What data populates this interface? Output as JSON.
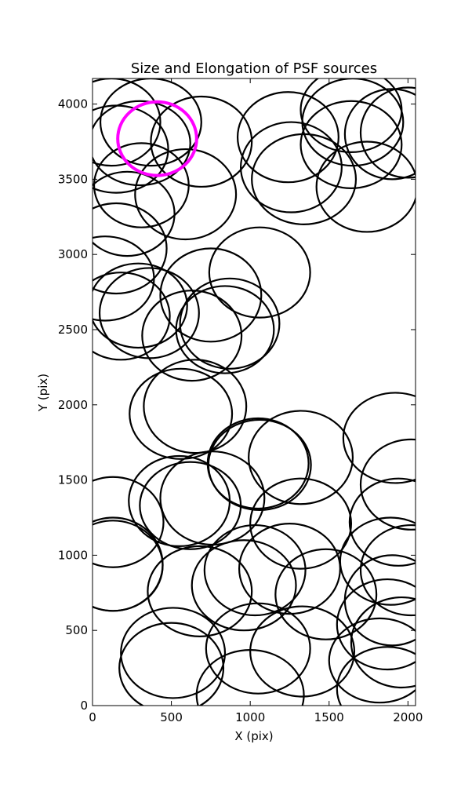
{
  "chart_data": {
    "type": "ellipse",
    "title": "Size and Elongation of PSF sources",
    "x_label": "X (pix)",
    "y_label": "Y (pix)",
    "xlim": [
      0,
      2048
    ],
    "ylim": [
      0,
      4170
    ],
    "xticks": [
      0,
      500,
      1000,
      1500,
      2000
    ],
    "yticks": [
      0,
      500,
      1000,
      1500,
      2000,
      2500,
      3000,
      3500,
      4000
    ],
    "series": [
      {
        "color": "#000000",
        "x": [
          120,
          370,
          150,
          300,
          690,
          590,
          310,
          220,
          150,
          80,
          290,
          180,
          360,
          750,
          1060,
          630,
          870,
          840,
          560,
          650,
          1240,
          1260,
          1340,
          1640,
          1650,
          1640,
          1740,
          1900,
          2000,
          1320,
          1050,
          1060,
          1920,
          2020,
          550,
          620,
          760,
          1320,
          130,
          130,
          130,
          1480,
          1250,
          1030,
          960,
          680,
          1050,
          1330,
          1000,
          510,
          500,
          1820,
          1870,
          1960,
          1900,
          1890,
          2020,
          1940,
          1870
        ],
        "y": [
          3880,
          3880,
          3700,
          3740,
          3750,
          3400,
          3460,
          3270,
          3040,
          2840,
          2660,
          2590,
          2610,
          2730,
          2880,
          2460,
          2540,
          2500,
          1940,
          1990,
          3780,
          3580,
          3500,
          3960,
          3880,
          3730,
          3450,
          3800,
          3810,
          1650,
          1610,
          1600,
          1780,
          1470,
          1360,
          1330,
          1380,
          1210,
          1220,
          930,
          940,
          740,
          910,
          900,
          800,
          760,
          380,
          360,
          70,
          350,
          250,
          300,
          540,
          420,
          700,
          960,
          900,
          1220,
          110
        ],
        "width": [
          620,
          640,
          660,
          640,
          640,
          640,
          600,
          600,
          640,
          620,
          620,
          620,
          630,
          640,
          640,
          630,
          630,
          620,
          650,
          650,
          640,
          640,
          660,
          640,
          640,
          640,
          640,
          600,
          600,
          660,
          640,
          650,
          660,
          640,
          640,
          640,
          660,
          640,
          640,
          630,
          630,
          640,
          640,
          640,
          660,
          660,
          660,
          660,
          680,
          660,
          660,
          640,
          640,
          640,
          600,
          640,
          640,
          620,
          640
        ],
        "height": [
          580,
          580,
          580,
          560,
          600,
          600,
          560,
          560,
          600,
          560,
          560,
          580,
          600,
          620,
          600,
          600,
          600,
          580,
          600,
          620,
          600,
          600,
          600,
          560,
          580,
          580,
          600,
          600,
          600,
          620,
          600,
          600,
          600,
          600,
          600,
          580,
          620,
          600,
          600,
          600,
          620,
          600,
          600,
          600,
          600,
          600,
          600,
          600,
          600,
          600,
          600,
          560,
          600,
          600,
          600,
          580,
          600,
          580,
          560
        ]
      },
      {
        "color": "#ff00ff",
        "x": [
          410
        ],
        "y": [
          3770
        ],
        "width": [
          500
        ],
        "height": [
          490
        ]
      }
    ]
  }
}
